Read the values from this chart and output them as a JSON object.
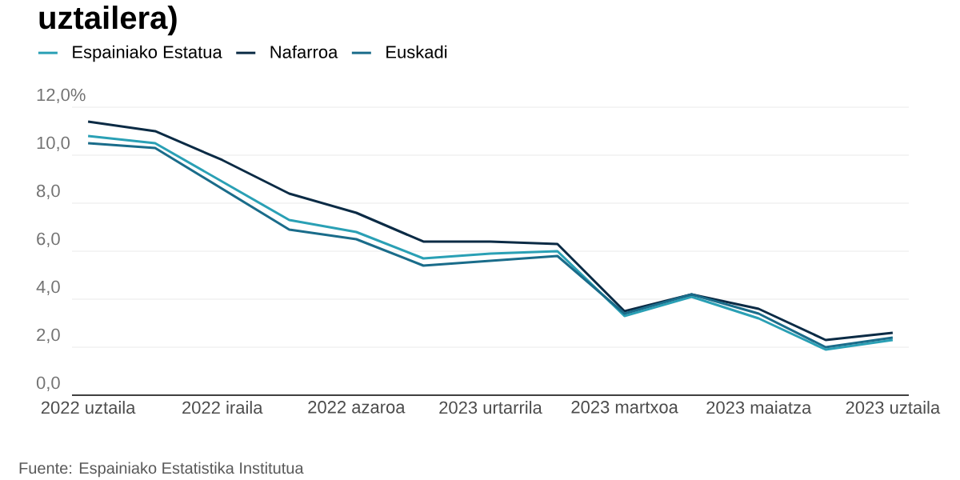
{
  "chart_data": {
    "type": "line",
    "title": "uztailera)",
    "categories": [
      "2022 uztaila",
      null,
      "2022 iraila",
      null,
      "2022 azaroa",
      null,
      "2023 urtarrila",
      null,
      "2023 martxoa",
      null,
      "2023 maiatza",
      null,
      "2023 uztaila"
    ],
    "series": [
      {
        "name": "Espainiako Estatua",
        "color": "#2aa0b5",
        "values": [
          10.8,
          10.5,
          8.9,
          7.3,
          6.8,
          5.7,
          5.9,
          6.0,
          3.3,
          4.1,
          3.2,
          1.9,
          2.3
        ]
      },
      {
        "name": "Nafarroa",
        "color": "#0b2b45",
        "values": [
          11.4,
          11.0,
          9.8,
          8.4,
          7.6,
          6.4,
          6.4,
          6.3,
          3.5,
          4.2,
          3.6,
          2.3,
          2.6
        ]
      },
      {
        "name": "Euskadi",
        "color": "#1a6c8a",
        "values": [
          10.5,
          10.3,
          8.6,
          6.9,
          6.5,
          5.4,
          5.6,
          5.8,
          3.4,
          4.2,
          3.4,
          2.0,
          2.4
        ]
      }
    ],
    "ylim": [
      0,
      12
    ],
    "yticks": [
      {
        "value": 0,
        "label": "0,0"
      },
      {
        "value": 2,
        "label": "2,0"
      },
      {
        "value": 4,
        "label": "4,0"
      },
      {
        "value": 6,
        "label": "6,0"
      },
      {
        "value": 8,
        "label": "8,0"
      },
      {
        "value": 10,
        "label": "10,0"
      },
      {
        "value": 12,
        "label": "12,0%"
      }
    ],
    "grid": "y",
    "legend": "top left",
    "line_style": "solid",
    "marker": "none",
    "annotations": [
      "Fuente: Espainiako Estatistika Institutua"
    ]
  }
}
